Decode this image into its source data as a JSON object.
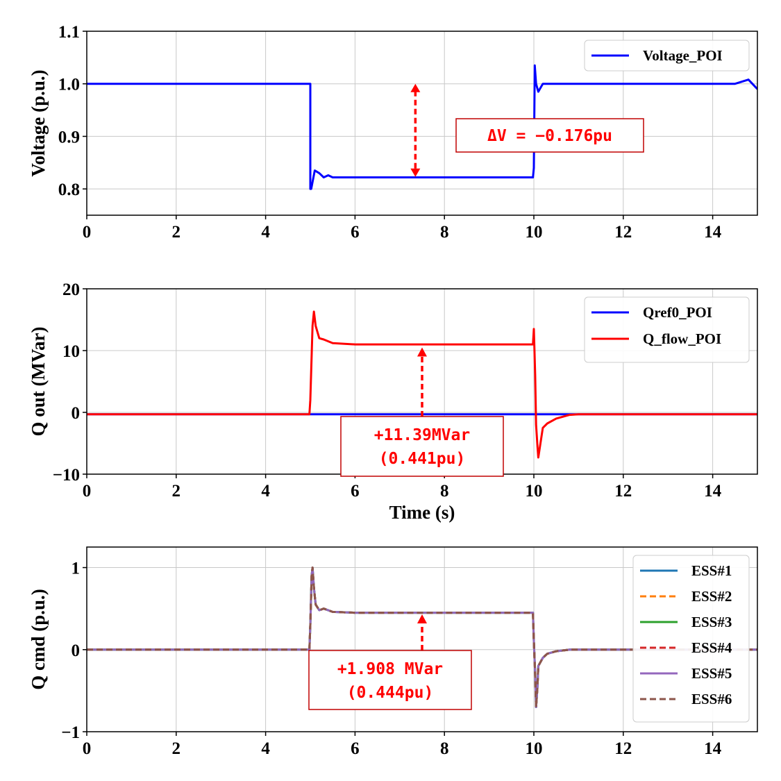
{
  "chart_data": [
    {
      "type": "line",
      "xlim": [
        0,
        15
      ],
      "ylim": [
        0.75,
        1.1
      ],
      "xticks": [
        "0",
        "2",
        "4",
        "6",
        "8",
        "10",
        "12",
        "14"
      ],
      "yticks": [
        "0.8",
        "0.9",
        "1.0",
        "1.1"
      ],
      "ylabel": "Voltage (p.u.)",
      "xlabel": "",
      "grid": true,
      "legend_position": "top-right",
      "series": [
        {
          "name": "Voltage_POI",
          "color": "#0000ff",
          "x": [
            0,
            5.0,
            5.0,
            5.02,
            5.1,
            5.2,
            5.3,
            5.4,
            5.5,
            6,
            7,
            8,
            9,
            9.98,
            10.0,
            10.02,
            10.05,
            10.1,
            10.2,
            10.4,
            11,
            12,
            13,
            14,
            14.5,
            14.8,
            15
          ],
          "y": [
            1.0,
            1.0,
            0.8,
            0.8,
            0.835,
            0.83,
            0.822,
            0.826,
            0.822,
            0.822,
            0.822,
            0.822,
            0.822,
            0.822,
            0.84,
            1.035,
            1.0,
            0.985,
            1.0,
            1.0,
            1.0,
            1.0,
            1.0,
            1.0,
            1.0,
            1.008,
            0.99
          ]
        }
      ],
      "annotation": {
        "text": "ΔV = −0.176pu",
        "arrow_x": 7.35,
        "arrow_y_from": 1.0,
        "arrow_y_to": 0.823
      }
    },
    {
      "type": "line",
      "xlim": [
        0,
        15
      ],
      "ylim": [
        -10,
        20
      ],
      "xticks": [
        "0",
        "2",
        "4",
        "6",
        "8",
        "10",
        "12",
        "14"
      ],
      "yticks": [
        "−10",
        "0",
        "10",
        "20"
      ],
      "ylabel": "Q out (MVar)",
      "xlabel": "Time (s)",
      "grid": true,
      "legend_position": "top-right",
      "series": [
        {
          "name": "Qref0_POI",
          "color": "#0000ff",
          "x": [
            0,
            15
          ],
          "y": [
            -0.3,
            -0.3
          ]
        },
        {
          "name": "Q_flow_POI",
          "color": "#ff0000",
          "x": [
            0,
            4.98,
            5.0,
            5.05,
            5.08,
            5.12,
            5.2,
            5.3,
            5.5,
            6,
            7,
            8,
            9,
            9.98,
            10.0,
            10.03,
            10.05,
            10.08,
            10.1,
            10.2,
            10.3,
            10.5,
            10.8,
            11,
            15
          ],
          "y": [
            -0.3,
            -0.3,
            2,
            14,
            16.3,
            14,
            12,
            11.8,
            11.2,
            11.0,
            11.0,
            11.0,
            11.0,
            11.0,
            13.5,
            6,
            -2,
            -5.5,
            -7.3,
            -2.5,
            -1.8,
            -1.0,
            -0.4,
            -0.3,
            -0.3
          ]
        }
      ],
      "annotation": {
        "lines": [
          "+11.39MVar",
          "(0.441pu)"
        ],
        "arrow_x": 7.5,
        "arrow_y_from": -0.3,
        "arrow_y_to": 10.5
      }
    },
    {
      "type": "line",
      "xlim": [
        0,
        15
      ],
      "ylim": [
        -1,
        1.25
      ],
      "xticks": [
        "0",
        "2",
        "4",
        "6",
        "8",
        "10",
        "12",
        "14"
      ],
      "yticks": [
        "−1",
        "0",
        "1"
      ],
      "ylabel": "Q cmd (p.u.)",
      "xlabel": "",
      "grid": true,
      "legend_position": "top-right",
      "shared_x": [
        0,
        4.98,
        5.0,
        5.03,
        5.05,
        5.08,
        5.12,
        5.2,
        5.3,
        5.5,
        6,
        7,
        8,
        9,
        9.98,
        10.0,
        10.03,
        10.05,
        10.08,
        10.1,
        10.2,
        10.3,
        10.5,
        10.8,
        11,
        15
      ],
      "shared_y": [
        0,
        0,
        0.3,
        0.9,
        1.0,
        0.75,
        0.55,
        0.48,
        0.5,
        0.46,
        0.45,
        0.45,
        0.45,
        0.45,
        0.45,
        0.1,
        -0.3,
        -0.7,
        -0.45,
        -0.2,
        -0.1,
        -0.05,
        -0.02,
        0,
        0,
        0
      ],
      "series": [
        {
          "name": "ESS#1",
          "color": "#1f77b4",
          "dash": false
        },
        {
          "name": "ESS#2",
          "color": "#ff7f0e",
          "dash": true
        },
        {
          "name": "ESS#3",
          "color": "#2ca02c",
          "dash": false
        },
        {
          "name": "ESS#4",
          "color": "#d62728",
          "dash": true
        },
        {
          "name": "ESS#5",
          "color": "#9467bd",
          "dash": false
        },
        {
          "name": "ESS#6",
          "color": "#8c564b",
          "dash": true
        }
      ],
      "annotation": {
        "lines": [
          "+1.908 MVar",
          "(0.444pu)"
        ],
        "arrow_x": 7.5,
        "arrow_y_from": 0.2,
        "arrow_y_to": 0.43
      }
    }
  ]
}
